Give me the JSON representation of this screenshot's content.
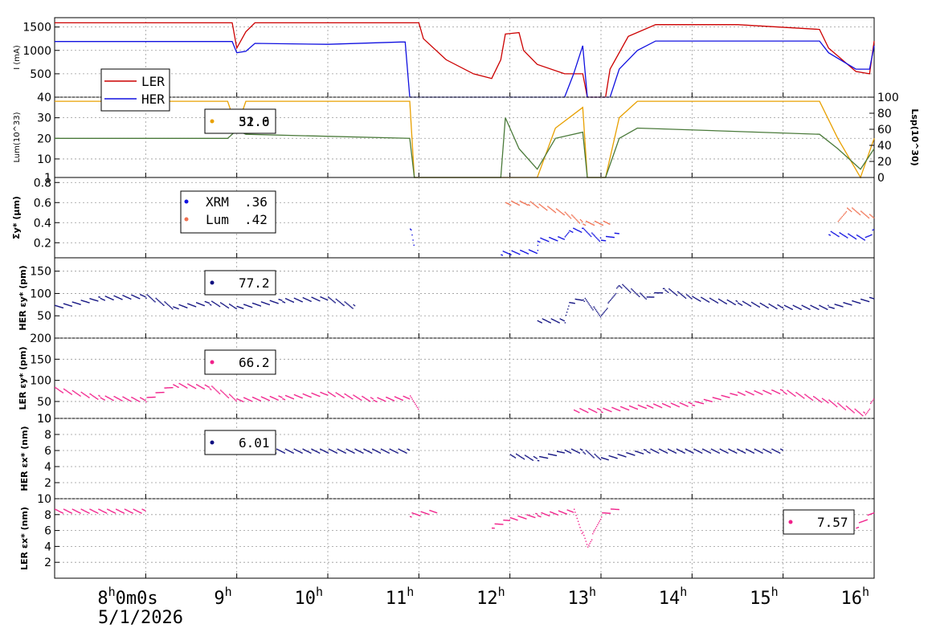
{
  "colors": {
    "ler": "#cc0000",
    "her": "#1010e0",
    "lum": "#e8a000",
    "lsp": "#4a7a3a",
    "xrm": "#1010e0",
    "lumsize": "#f07050",
    "navy": "#101080",
    "pink": "#f0208a"
  },
  "chart_data": [
    {
      "type": "line",
      "id": "current",
      "ylabel": "I (mA)",
      "ylim": [
        0,
        1700
      ],
      "yticks": [
        500,
        1000,
        1500
      ],
      "legend": [
        "LER",
        "HER"
      ],
      "series": [
        {
          "name": "LER",
          "color": "#cc0000",
          "points": [
            [
              7.0,
              1590
            ],
            [
              8.95,
              1590
            ],
            [
              9.0,
              1050
            ],
            [
              9.1,
              1400
            ],
            [
              9.2,
              1590
            ],
            [
              10.85,
              1590
            ],
            [
              10.9,
              1590
            ],
            [
              11.0,
              1590
            ],
            [
              11.05,
              1250
            ],
            [
              11.3,
              800
            ],
            [
              11.6,
              500
            ],
            [
              11.8,
              400
            ],
            [
              11.9,
              800
            ],
            [
              11.95,
              1350
            ],
            [
              12.1,
              1380
            ],
            [
              12.15,
              1000
            ],
            [
              12.3,
              700
            ],
            [
              12.6,
              500
            ],
            [
              12.8,
              500
            ],
            [
              12.85,
              0
            ],
            [
              13.05,
              0
            ],
            [
              13.1,
              600
            ],
            [
              13.3,
              1300
            ],
            [
              13.6,
              1550
            ],
            [
              14.5,
              1550
            ],
            [
              15.4,
              1450
            ],
            [
              15.5,
              1050
            ],
            [
              15.8,
              550
            ],
            [
              15.95,
              500
            ],
            [
              16.0,
              1200
            ]
          ]
        },
        {
          "name": "HER",
          "color": "#1010e0",
          "points": [
            [
              7.0,
              1190
            ],
            [
              8.95,
              1190
            ],
            [
              9.0,
              950
            ],
            [
              9.1,
              980
            ],
            [
              9.2,
              1150
            ],
            [
              10.0,
              1130
            ],
            [
              10.8,
              1180
            ],
            [
              10.85,
              1180
            ],
            [
              10.9,
              0
            ],
            [
              12.6,
              0
            ],
            [
              12.7,
              500
            ],
            [
              12.8,
              1100
            ],
            [
              12.85,
              0
            ],
            [
              13.1,
              0
            ],
            [
              13.2,
              600
            ],
            [
              13.4,
              1000
            ],
            [
              13.6,
              1200
            ],
            [
              15.4,
              1200
            ],
            [
              15.5,
              950
            ],
            [
              15.8,
              600
            ],
            [
              15.95,
              600
            ],
            [
              16.0,
              1100
            ]
          ]
        }
      ]
    },
    {
      "type": "line",
      "id": "luminosity",
      "ylabel": "Lum(10^33)",
      "y2label": "Lsp(10^30)",
      "ylim": [
        1,
        40
      ],
      "yticks": [
        1,
        10,
        20,
        30,
        40
      ],
      "y2ticks": [
        0,
        20,
        40,
        60,
        80,
        100
      ],
      "legend_values": [
        "52.0",
        "31.6"
      ],
      "series": [
        {
          "name": "Lum",
          "color": "#e8a000",
          "points": [
            [
              7.0,
              38
            ],
            [
              8.9,
              38
            ],
            [
              9.0,
              25
            ],
            [
              9.1,
              38
            ],
            [
              10.9,
              38
            ],
            [
              10.95,
              1
            ],
            [
              12.3,
              1
            ],
            [
              12.5,
              25
            ],
            [
              12.8,
              35
            ],
            [
              12.85,
              1
            ],
            [
              13.05,
              1
            ],
            [
              13.2,
              30
            ],
            [
              13.4,
              38
            ],
            [
              15.4,
              38
            ],
            [
              15.6,
              20
            ],
            [
              15.85,
              1
            ],
            [
              16.0,
              20
            ]
          ]
        },
        {
          "name": "Lsp",
          "color": "#4a7a3a",
          "points": [
            [
              7.0,
              20
            ],
            [
              8.9,
              20
            ],
            [
              9.0,
              24
            ],
            [
              9.1,
              22
            ],
            [
              10.9,
              20
            ],
            [
              10.95,
              1
            ],
            [
              11.9,
              1
            ],
            [
              11.95,
              30
            ],
            [
              12.1,
              15
            ],
            [
              12.3,
              5
            ],
            [
              12.5,
              20
            ],
            [
              12.8,
              23
            ],
            [
              12.85,
              1
            ],
            [
              13.05,
              1
            ],
            [
              13.2,
              20
            ],
            [
              13.4,
              25
            ],
            [
              15.4,
              22
            ],
            [
              15.6,
              15
            ],
            [
              15.85,
              5
            ],
            [
              16.0,
              15
            ]
          ]
        }
      ]
    },
    {
      "type": "scatter",
      "id": "sigma",
      "ylabel": "Σy* (µm)",
      "ylim": [
        0.05,
        0.85
      ],
      "yticks": [
        0.2,
        0.4,
        0.6,
        0.8
      ],
      "legend": [
        {
          "name": "XRM",
          "value": ".36"
        },
        {
          "name": "Lum",
          "value": ".42"
        }
      ],
      "series": [
        {
          "name": "XRM",
          "color": "#1010e0",
          "points": [
            [
              7.0,
              0.35
            ],
            [
              9.0,
              0.32
            ],
            [
              10.9,
              0.36
            ],
            [
              10.95,
              0.13
            ],
            [
              11.9,
              0.1
            ],
            [
              12.3,
              0.12
            ],
            [
              12.3,
              0.23
            ],
            [
              12.6,
              0.25
            ],
            [
              12.65,
              0.33
            ],
            [
              12.8,
              0.33
            ],
            [
              13.0,
              0.23
            ],
            [
              13.2,
              0.3
            ],
            [
              14.0,
              0.34
            ],
            [
              15.5,
              0.3
            ],
            [
              15.9,
              0.25
            ],
            [
              16.0,
              0.33
            ]
          ]
        },
        {
          "name": "Lum",
          "color": "#f07050",
          "points": [
            [
              7.0,
              0.43
            ],
            [
              9.0,
              0.37
            ],
            [
              10.9,
              0.43
            ],
            [
              11.95,
              0.6
            ],
            [
              12.2,
              0.6
            ],
            [
              12.6,
              0.5
            ],
            [
              12.8,
              0.4
            ],
            [
              13.1,
              0.4
            ],
            [
              14.3,
              0.42
            ],
            [
              15.6,
              0.4
            ],
            [
              15.7,
              0.55
            ],
            [
              16.0,
              0.45
            ]
          ]
        }
      ]
    },
    {
      "type": "scatter",
      "id": "her_eps_y",
      "ylabel": "HER εy* (pm)",
      "ylim": [
        0,
        180
      ],
      "yticks": [
        50,
        100,
        150
      ],
      "legend_value": "77.2",
      "series": [
        {
          "name": "HER εy*",
          "color": "#101080",
          "points": [
            [
              7.0,
              70
            ],
            [
              7.5,
              90
            ],
            [
              8.0,
              95
            ],
            [
              8.3,
              70
            ],
            [
              8.7,
              80
            ],
            [
              9.0,
              70
            ],
            [
              9.5,
              85
            ],
            [
              10.0,
              90
            ],
            [
              10.3,
              70
            ],
            [
              10.9,
              100
            ],
            [
              12.3,
              40
            ],
            [
              12.6,
              40
            ],
            [
              12.65,
              80
            ],
            [
              12.8,
              90
            ],
            [
              13.0,
              50
            ],
            [
              13.2,
              120
            ],
            [
              13.5,
              90
            ],
            [
              13.7,
              110
            ],
            [
              14.0,
              90
            ],
            [
              14.5,
              80
            ],
            [
              15.0,
              70
            ],
            [
              15.5,
              70
            ],
            [
              16.0,
              90
            ]
          ]
        }
      ]
    },
    {
      "type": "scatter",
      "id": "ler_eps_y",
      "ylabel": "LER εy* (pm)",
      "ylim": [
        10,
        200
      ],
      "yticks": [
        10,
        50,
        100,
        150,
        200
      ],
      "legend_value": "66.2",
      "series": [
        {
          "name": "LER εy*",
          "color": "#f0208a",
          "points": [
            [
              7.0,
              80
            ],
            [
              7.5,
              60
            ],
            [
              8.0,
              55
            ],
            [
              8.3,
              90
            ],
            [
              8.7,
              85
            ],
            [
              9.0,
              55
            ],
            [
              9.5,
              60
            ],
            [
              10.0,
              70
            ],
            [
              10.5,
              55
            ],
            [
              10.9,
              60
            ],
            [
              11.0,
              35
            ],
            [
              12.0,
              20
            ],
            [
              12.7,
              30
            ],
            [
              13.0,
              30
            ],
            [
              13.5,
              40
            ],
            [
              14.0,
              45
            ],
            [
              14.5,
              70
            ],
            [
              15.0,
              75
            ],
            [
              15.5,
              50
            ],
            [
              15.9,
              20
            ],
            [
              16.0,
              60
            ]
          ]
        }
      ]
    },
    {
      "type": "scatter",
      "id": "her_eps_x",
      "ylabel": "HER εx* (nm)",
      "ylim": [
        0,
        10
      ],
      "yticks": [
        2,
        4,
        6,
        8,
        10
      ],
      "legend_value": "6.01",
      "series": [
        {
          "name": "HER εx*",
          "color": "#101080",
          "points": [
            [
              7.0,
              6.2
            ],
            [
              9.0,
              6.0
            ],
            [
              10.9,
              6.0
            ],
            [
              12.0,
              5.5
            ],
            [
              12.3,
              5.0
            ],
            [
              12.6,
              6.0
            ],
            [
              12.8,
              6.0
            ],
            [
              13.0,
              5.0
            ],
            [
              13.5,
              6.0
            ],
            [
              15.0,
              6.0
            ],
            [
              16.0,
              5.5
            ]
          ]
        }
      ]
    },
    {
      "type": "scatter",
      "id": "ler_eps_x",
      "ylabel": "LER εx* (nm)",
      "ylim": [
        0,
        10
      ],
      "yticks": [
        2,
        4,
        6,
        8,
        10
      ],
      "legend_value": "7.57",
      "series": [
        {
          "name": "LER εx*",
          "color": "#f0208a",
          "points": [
            [
              7.0,
              8.5
            ],
            [
              8.0,
              8.5
            ],
            [
              9.0,
              8.0
            ],
            [
              10.0,
              8.5
            ],
            [
              10.9,
              8.0
            ],
            [
              11.2,
              8.5
            ],
            [
              11.8,
              6.5
            ],
            [
              12.0,
              7.5
            ],
            [
              12.3,
              8.0
            ],
            [
              12.7,
              8.5
            ],
            [
              12.85,
              4.0
            ],
            [
              13.0,
              8.0
            ],
            [
              13.2,
              9.0
            ],
            [
              14.0,
              8.0
            ],
            [
              15.0,
              7.5
            ],
            [
              15.8,
              6.5
            ],
            [
              16.0,
              8.5
            ]
          ]
        }
      ]
    }
  ],
  "xaxis": {
    "labels": [
      {
        "t": 8.0,
        "h": "8",
        "rest": "0m0s"
      },
      {
        "t": 9,
        "h": "9"
      },
      {
        "t": 10,
        "h": "10"
      },
      {
        "t": 11,
        "h": "11"
      },
      {
        "t": 12,
        "h": "12"
      },
      {
        "t": 13,
        "h": "13"
      },
      {
        "t": 14,
        "h": "14"
      },
      {
        "t": 15,
        "h": "15"
      },
      {
        "t": 16,
        "h": "16"
      }
    ],
    "date": "5/1/2026",
    "range": [
      7.0,
      16.0
    ]
  }
}
